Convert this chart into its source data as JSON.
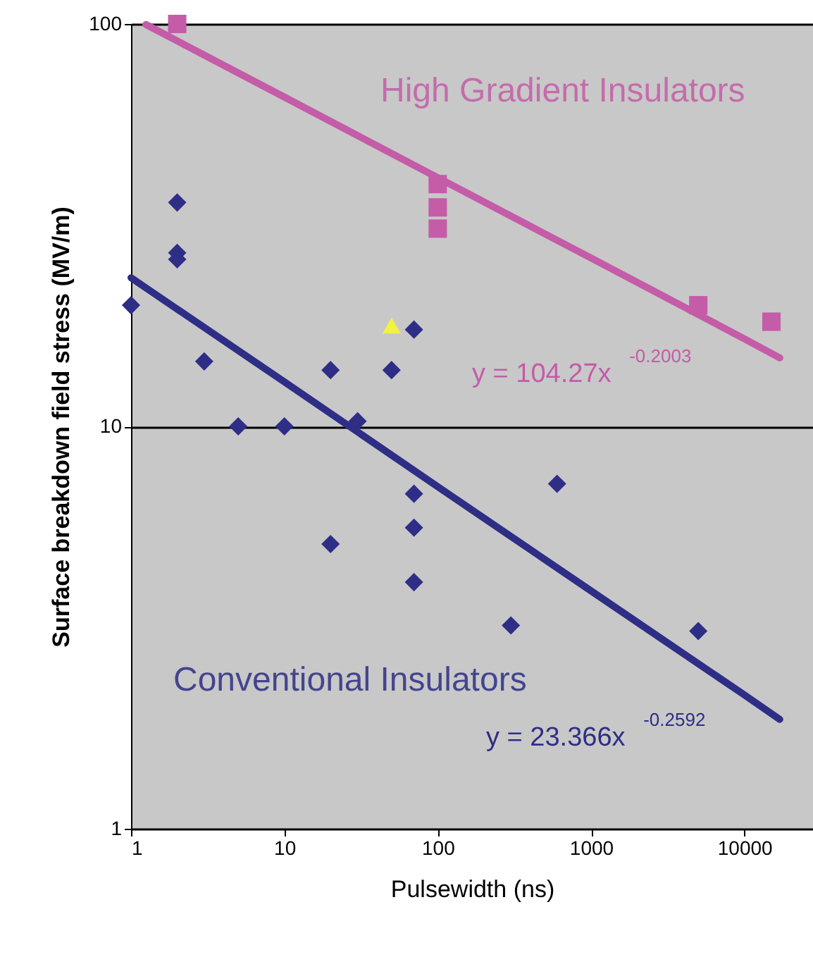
{
  "chart_data": {
    "type": "scatter",
    "xlabel": "Pulsewidth   (ns)",
    "ylabel": "Surface breakdown field stress (MV/m)",
    "xlim": [
      1,
      28000
    ],
    "ylim": [
      1,
      100
    ],
    "xticks": [
      1,
      10,
      100,
      1000,
      10000
    ],
    "yticks": [
      1,
      10,
      100
    ],
    "log": "xy",
    "grid": "y",
    "legend": false,
    "series": [
      {
        "name": "High Gradient Insulators",
        "marker": "square",
        "color": "#c45ca8",
        "x": [
          2,
          100,
          100,
          100,
          5000,
          15000
        ],
        "values": [
          100,
          40,
          35,
          31,
          20,
          18.2
        ]
      },
      {
        "name": "Conventional Insulators",
        "marker": "diamond",
        "color": "#2e2e86",
        "x": [
          1,
          2,
          2,
          2,
          3,
          5,
          10,
          20,
          20,
          30,
          50,
          70,
          70,
          70,
          70,
          300,
          600,
          5000
        ],
        "values": [
          20,
          36,
          27,
          26,
          14.5,
          10,
          10,
          13.8,
          5.1,
          10.3,
          13.8,
          17.4,
          6.8,
          5.6,
          4.1,
          3.2,
          7.2,
          3.1
        ]
      },
      {
        "marker": "triangle",
        "color": "#f2f240",
        "x": [
          50
        ],
        "values": [
          17.8
        ]
      },
      {
        "type": "line",
        "line_style": "solid",
        "color": "#c45ca8",
        "x": [
          1.25,
          10,
          100,
          1000,
          10000,
          17000
        ],
        "values": [
          99.7,
          65.8,
          41.5,
          26.2,
          16.5,
          14.8
        ]
      },
      {
        "type": "line",
        "line_style": "solid",
        "color": "#2e2e86",
        "x": [
          1,
          10,
          100,
          1000,
          10000,
          17000
        ],
        "values": [
          23.4,
          12.9,
          7.08,
          3.9,
          2.15,
          1.87
        ]
      }
    ],
    "annotations": [
      "y = 104.27x$^{-0.2003}$",
      "y = 23.366x$^{-0.2592}$"
    ]
  }
}
